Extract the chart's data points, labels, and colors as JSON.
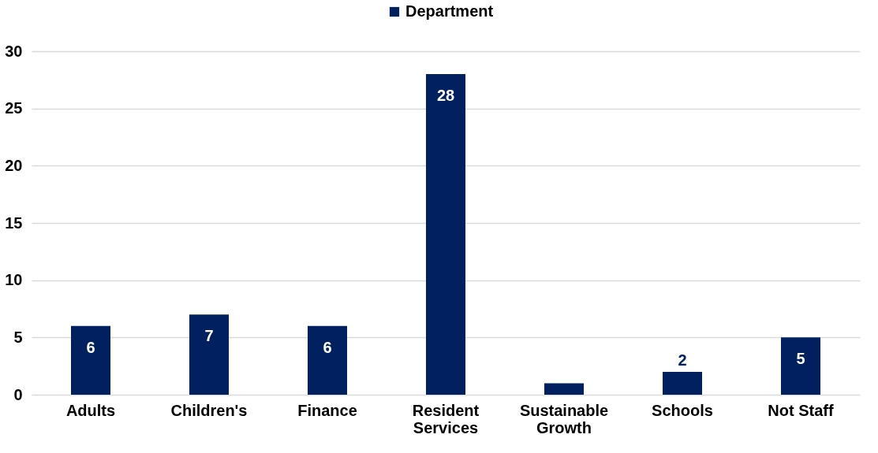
{
  "chart_data": {
    "type": "bar",
    "categories": [
      "Adults",
      "Children's",
      "Finance",
      "Resident Services",
      "Sustainable Growth",
      "Schools",
      "Not Staff"
    ],
    "series": [
      {
        "name": "Department",
        "color": "#002060",
        "values": [
          6,
          7,
          6,
          28,
          1,
          2,
          5
        ],
        "value_labels": [
          "6",
          "7",
          "6",
          "28",
          null,
          "2",
          "5"
        ]
      }
    ],
    "ylim": [
      0,
      30
    ],
    "yticks": [
      0,
      5,
      10,
      15,
      20,
      25,
      30
    ],
    "grid": "y",
    "legend": "top"
  }
}
